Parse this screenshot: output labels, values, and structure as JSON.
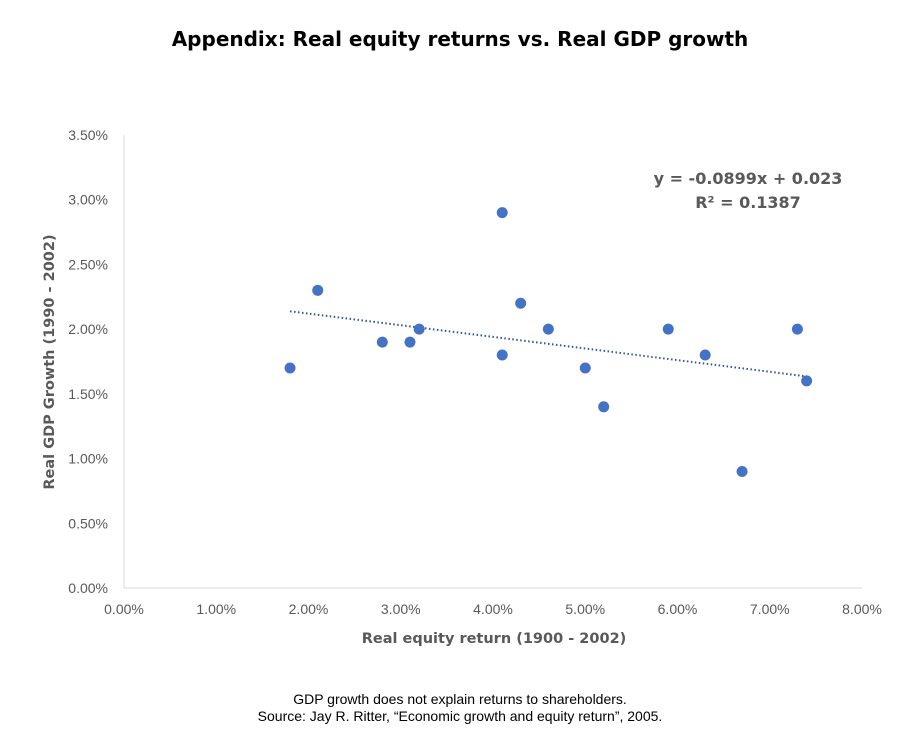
{
  "chart_data": {
    "type": "scatter",
    "title": "Appendix: Real equity returns vs. Real GDP growth",
    "xlabel": "Real equity return (1900 - 2002)",
    "ylabel": "Real GDP Growth (1990 - 2002)",
    "xlim": [
      0,
      8
    ],
    "ylim": [
      0,
      3.5
    ],
    "x_ticks": [
      "0.00%",
      "1.00%",
      "2.00%",
      "3.00%",
      "4.00%",
      "5.00%",
      "6.00%",
      "7.00%",
      "8.00%"
    ],
    "y_ticks": [
      "0.00%",
      "0.50%",
      "1.00%",
      "1.50%",
      "2.00%",
      "2.50%",
      "3.00%",
      "3.50%"
    ],
    "grid": false,
    "point_color": "#4472C4",
    "trendline_color": "#2F5597",
    "points": [
      {
        "x": 1.8,
        "y": 1.7
      },
      {
        "x": 2.1,
        "y": 2.3
      },
      {
        "x": 2.8,
        "y": 1.9
      },
      {
        "x": 3.1,
        "y": 1.9
      },
      {
        "x": 3.2,
        "y": 2.0
      },
      {
        "x": 4.1,
        "y": 2.9
      },
      {
        "x": 4.1,
        "y": 1.8
      },
      {
        "x": 4.3,
        "y": 2.2
      },
      {
        "x": 4.6,
        "y": 2.0
      },
      {
        "x": 5.0,
        "y": 1.7
      },
      {
        "x": 5.2,
        "y": 1.4
      },
      {
        "x": 5.9,
        "y": 2.0
      },
      {
        "x": 6.3,
        "y": 1.8
      },
      {
        "x": 6.7,
        "y": 0.9
      },
      {
        "x": 7.3,
        "y": 2.0
      },
      {
        "x": 7.4,
        "y": 1.6
      }
    ],
    "trendline": {
      "slope": -0.0899,
      "intercept": 0.023,
      "x_range": [
        1.8,
        7.4
      ],
      "style": "dotted"
    },
    "annotations": {
      "equation": "y = -0.0899x + 0.023",
      "r_squared": "R² = 0.1387"
    }
  },
  "caption": {
    "line1": "GDP growth does not explain returns to shareholders.",
    "line2": "Source: Jay R. Ritter, “Economic growth and equity return”, 2005."
  }
}
